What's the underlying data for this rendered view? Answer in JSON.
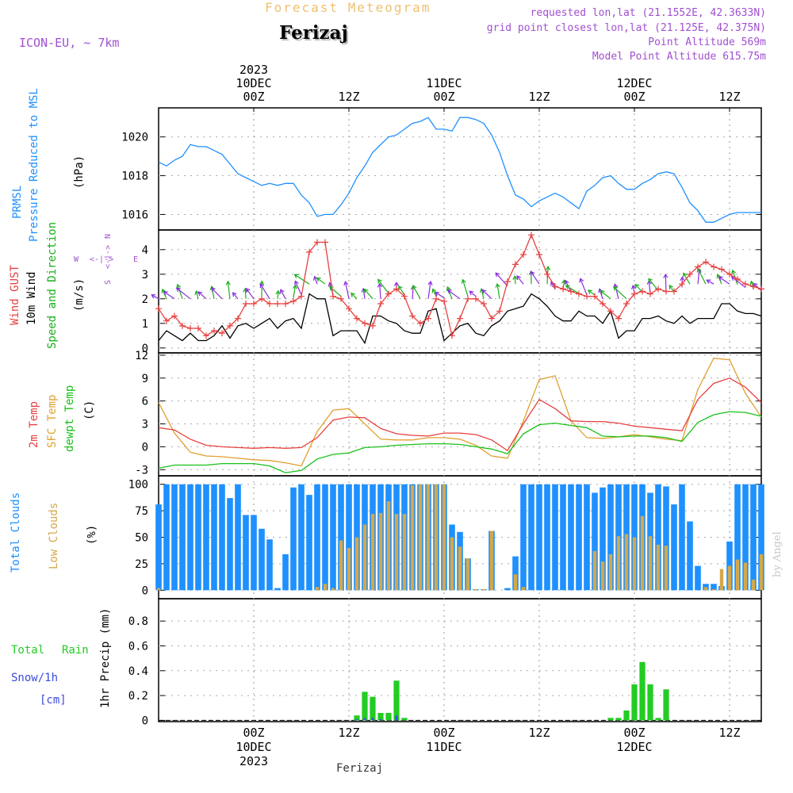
{
  "header": {
    "title": "Forecast Meteogram",
    "location": "Ferizaj",
    "model": "ICON-EU, ~ 7km",
    "requested": "requested lon,lat (21.1552E, 42.3633N)",
    "grid_point": "grid point closest lon,lat (21.125E, 42.375N)",
    "point_altitude": "Point Altitude 569m",
    "model_altitude": "Model Point Altitude 615.75m",
    "footer_location": "Ferizaj",
    "watermark": "by Angel"
  },
  "colors": {
    "prmsl": "#1e90ff",
    "gust": "#e84040",
    "wind": "#000000",
    "direction": "#18b018",
    "temp2m": "#e84040",
    "sfc": "#e0a030",
    "dewpt": "#18c018",
    "total_clouds": "#1e90ff",
    "low_clouds": "#d4a84a",
    "rain": "#22cc22",
    "snow": "#3a4ae0",
    "purple": "#a050d0",
    "title_orange": "#f0c070"
  },
  "time_axis": {
    "top": [
      {
        "hour": 12,
        "lines": [
          "2023",
          "10DEC",
          "00Z"
        ]
      },
      {
        "hour": 24,
        "lines": [
          "12Z"
        ]
      },
      {
        "hour": 36,
        "lines": [
          "11DEC",
          "00Z"
        ]
      },
      {
        "hour": 48,
        "lines": [
          "12Z"
        ]
      },
      {
        "hour": 60,
        "lines": [
          "12DEC",
          "00Z"
        ]
      },
      {
        "hour": 72,
        "lines": [
          "12Z"
        ]
      }
    ],
    "bottom": [
      {
        "hour": 12,
        "lines": [
          "00Z",
          "10DEC",
          "2023"
        ]
      },
      {
        "hour": 24,
        "lines": [
          "12Z"
        ]
      },
      {
        "hour": 36,
        "lines": [
          "00Z",
          "11DEC"
        ]
      },
      {
        "hour": 48,
        "lines": [
          "12Z"
        ]
      },
      {
        "hour": 60,
        "lines": [
          "00Z",
          "12DEC"
        ]
      },
      {
        "hour": 72,
        "lines": [
          "12Z"
        ]
      }
    ]
  },
  "panels": {
    "pressure": {
      "labels": [
        "PRMSL",
        "Pressure Reduced to MSL"
      ],
      "unit": "(hPa)"
    },
    "wind": {
      "labels": [
        "Wind GUST",
        "10m Wind",
        "Speed and Direction"
      ],
      "unit": "(m/s)",
      "compass": {
        "n": "N",
        "s": "S",
        "e": "E",
        "w": "W",
        "ns": "<-|->",
        "we": "<-|->"
      }
    },
    "temp": {
      "labels": [
        "2m Temp",
        "SFC Temp",
        "dewpt Temp"
      ],
      "unit": "(C)"
    },
    "clouds": {
      "labels": [
        "Total Clouds",
        "Low Clouds"
      ],
      "unit": "(%)"
    },
    "precip": {
      "labels": [
        "Total",
        "Rain",
        "Snow/1h",
        "[cm]"
      ],
      "unit": "1hr Precip (mm)"
    }
  },
  "chart_data": [
    {
      "type": "line",
      "id": "pressure",
      "ylabel": "hPa",
      "ylim": [
        1015.2,
        1021.5
      ],
      "yticks": [
        1016,
        1018,
        1020
      ],
      "x": [
        0,
        1,
        2,
        3,
        4,
        5,
        6,
        7,
        8,
        9,
        10,
        11,
        12,
        13,
        14,
        15,
        16,
        17,
        18,
        19,
        20,
        21,
        22,
        23,
        24,
        25,
        26,
        27,
        28,
        29,
        30,
        31,
        32,
        33,
        34,
        35,
        36,
        37,
        38,
        39,
        40,
        41,
        42,
        43,
        44,
        45,
        46,
        47,
        48,
        49,
        50,
        51,
        52,
        53,
        54,
        55,
        56,
        57,
        58,
        59,
        60,
        61,
        62,
        63,
        64,
        65,
        66,
        67,
        68,
        69,
        70,
        71,
        72,
        73,
        74,
        75,
        76
      ],
      "series": [
        {
          "name": "PRMSL",
          "values": [
            1018.7,
            1018.5,
            1018.8,
            1019.0,
            1019.6,
            1019.5,
            1019.5,
            1019.3,
            1019.1,
            1018.6,
            1018.1,
            1017.9,
            1017.7,
            1017.5,
            1017.6,
            1017.5,
            1017.6,
            1017.6,
            1017.0,
            1016.6,
            1015.9,
            1016.0,
            1016.0,
            1016.5,
            1017.1,
            1017.9,
            1018.5,
            1019.2,
            1019.6,
            1020.0,
            1020.1,
            1020.4,
            1020.7,
            1020.8,
            1021.0,
            1020.4,
            1020.4,
            1020.3,
            1021.0,
            1021.0,
            1020.9,
            1020.7,
            1020.1,
            1019.2,
            1018.0,
            1017.0,
            1016.8,
            1016.4,
            1016.7,
            1016.9,
            1017.1,
            1016.9,
            1016.6,
            1016.3,
            1017.2,
            1017.5,
            1017.9,
            1018.0,
            1017.6,
            1017.3,
            1017.3,
            1017.6,
            1017.8,
            1018.1,
            1018.2,
            1018.1,
            1017.4,
            1016.6,
            1016.2,
            1015.6,
            1015.6,
            1015.8,
            1016.0,
            1016.1,
            1016.1,
            1016.1,
            1016.1
          ]
        }
      ]
    },
    {
      "type": "line",
      "id": "wind",
      "ylabel": "m/s",
      "ylim": [
        -0.2,
        4.8
      ],
      "yticks": [
        0,
        1,
        2,
        3,
        4
      ],
      "x": [
        0,
        1,
        2,
        3,
        4,
        5,
        6,
        7,
        8,
        9,
        10,
        11,
        12,
        13,
        14,
        15,
        16,
        17,
        18,
        19,
        20,
        21,
        22,
        23,
        24,
        25,
        26,
        27,
        28,
        29,
        30,
        31,
        32,
        33,
        34,
        35,
        36,
        37,
        38,
        39,
        40,
        41,
        42,
        43,
        44,
        45,
        46,
        47,
        48,
        49,
        50,
        51,
        52,
        53,
        54,
        55,
        56,
        57,
        58,
        59,
        60,
        61,
        62,
        63,
        64,
        65,
        66,
        67,
        68,
        69,
        70,
        71,
        72,
        73,
        74,
        75,
        76
      ],
      "series": [
        {
          "name": "Wind GUST",
          "values": [
            1.6,
            1.1,
            1.3,
            0.9,
            0.8,
            0.8,
            0.5,
            0.7,
            0.6,
            0.9,
            1.2,
            1.8,
            1.8,
            2.0,
            1.8,
            1.8,
            1.8,
            1.9,
            2.1,
            3.9,
            4.3,
            4.3,
            2.1,
            2.0,
            1.6,
            1.2,
            1.0,
            0.9,
            1.8,
            2.2,
            2.4,
            2.1,
            1.3,
            1.0,
            1.2,
            2.0,
            1.9,
            0.5,
            1.2,
            2.0,
            2.0,
            1.8,
            1.2,
            1.5,
            2.7,
            3.4,
            3.8,
            4.6,
            3.8,
            3.0,
            2.5,
            2.4,
            2.3,
            2.2,
            2.1,
            2.1,
            1.8,
            1.5,
            1.2,
            1.8,
            2.2,
            2.3,
            2.2,
            2.4,
            2.3,
            2.3,
            2.6,
            3.0,
            3.3,
            3.5,
            3.3,
            3.2,
            3.0,
            2.8,
            2.6,
            2.5,
            2.4
          ]
        },
        {
          "name": "10m Wind",
          "values": [
            0.3,
            0.7,
            0.5,
            0.3,
            0.6,
            0.3,
            0.3,
            0.5,
            0.9,
            0.4,
            0.9,
            1.0,
            0.8,
            1.0,
            1.2,
            0.8,
            1.1,
            1.2,
            0.8,
            2.2,
            2.0,
            2.0,
            0.5,
            0.7,
            0.7,
            0.7,
            0.2,
            1.3,
            1.3,
            1.1,
            1.0,
            0.7,
            0.6,
            0.6,
            1.5,
            1.6,
            0.3,
            0.6,
            0.9,
            1.0,
            0.6,
            0.5,
            0.9,
            1.1,
            1.5,
            1.6,
            1.7,
            2.2,
            2.0,
            1.7,
            1.3,
            1.1,
            1.1,
            1.5,
            1.3,
            1.3,
            1.0,
            1.5,
            0.4,
            0.7,
            0.7,
            1.2,
            1.2,
            1.3,
            1.1,
            1.0,
            1.3,
            1.0,
            1.2,
            1.2,
            1.2,
            1.8,
            1.8,
            1.5,
            1.4,
            1.4,
            1.3
          ]
        }
      ]
    },
    {
      "type": "line",
      "id": "temperature",
      "ylabel": "C",
      "ylim": [
        -3.8,
        12.3
      ],
      "yticks": [
        -3,
        0,
        3,
        6,
        9,
        12
      ],
      "x": [
        0,
        2,
        4,
        6,
        8,
        10,
        12,
        14,
        16,
        18,
        20,
        22,
        24,
        26,
        28,
        30,
        32,
        34,
        36,
        38,
        40,
        42,
        44,
        46,
        48,
        50,
        52,
        54,
        56,
        58,
        60,
        62,
        64,
        66,
        68,
        70,
        72,
        74,
        76
      ],
      "series": [
        {
          "name": "2m Temp",
          "values": [
            2.5,
            2.2,
            1.0,
            0.2,
            0.0,
            -0.1,
            -0.2,
            -0.1,
            -0.2,
            -0.1,
            1.2,
            3.5,
            3.9,
            3.8,
            2.4,
            1.7,
            1.5,
            1.4,
            1.8,
            1.8,
            1.6,
            0.9,
            -0.5,
            3.0,
            6.2,
            5.0,
            3.4,
            3.3,
            3.3,
            3.1,
            2.7,
            2.5,
            2.3,
            2.1,
            6.2,
            8.3,
            9.0,
            7.8,
            5.8
          ]
        },
        {
          "name": "SFC Temp",
          "values": [
            5.8,
            1.8,
            -0.7,
            -1.2,
            -1.3,
            -1.5,
            -1.7,
            -1.8,
            -2.1,
            -2.5,
            2.0,
            4.8,
            5.0,
            3.0,
            1.0,
            0.9,
            0.9,
            1.2,
            1.2,
            1.0,
            0.2,
            -1.2,
            -1.5,
            3.4,
            8.8,
            9.3,
            3.4,
            1.2,
            1.1,
            1.3,
            1.6,
            1.3,
            1.0,
            0.8,
            7.5,
            11.6,
            11.4,
            7.0,
            3.9
          ]
        },
        {
          "name": "dewpt Temp",
          "values": [
            -2.8,
            -2.4,
            -2.4,
            -2.4,
            -2.2,
            -2.2,
            -2.2,
            -2.5,
            -3.4,
            -3.1,
            -1.6,
            -1.0,
            -0.8,
            -0.1,
            0.0,
            0.2,
            0.3,
            0.4,
            0.4,
            0.3,
            0.0,
            -0.3,
            -0.9,
            1.7,
            2.9,
            3.1,
            2.8,
            2.5,
            1.4,
            1.3,
            1.4,
            1.4,
            1.2,
            0.7,
            3.2,
            4.2,
            4.6,
            4.5,
            4.0
          ]
        }
      ]
    },
    {
      "type": "bar",
      "id": "clouds",
      "ylabel": "%",
      "ylim": [
        -8,
        108
      ],
      "yticks": [
        0,
        25,
        50,
        75,
        100
      ],
      "x": [
        0,
        1,
        2,
        3,
        4,
        5,
        6,
        7,
        8,
        9,
        10,
        11,
        12,
        13,
        14,
        15,
        16,
        17,
        18,
        19,
        20,
        21,
        22,
        23,
        24,
        25,
        26,
        27,
        28,
        29,
        30,
        31,
        32,
        33,
        34,
        35,
        36,
        37,
        38,
        39,
        40,
        41,
        42,
        43,
        44,
        45,
        46,
        47,
        48,
        49,
        50,
        51,
        52,
        53,
        54,
        55,
        56,
        57,
        58,
        59,
        60,
        61,
        62,
        63,
        64,
        65,
        66,
        67,
        68,
        69,
        70,
        71,
        72,
        73,
        74,
        75,
        76
      ],
      "series": [
        {
          "name": "Total Clouds",
          "values": [
            81,
            100,
            100,
            100,
            100,
            100,
            100,
            100,
            100,
            87,
            100,
            71,
            71,
            58,
            48,
            2,
            34,
            97,
            100,
            90,
            100,
            100,
            100,
            100,
            100,
            100,
            100,
            100,
            100,
            100,
            100,
            100,
            100,
            100,
            100,
            100,
            100,
            62,
            55,
            30,
            1,
            1,
            56,
            0,
            2,
            32,
            100,
            100,
            100,
            100,
            100,
            100,
            100,
            100,
            100,
            92,
            97,
            100,
            100,
            100,
            100,
            100,
            92,
            100,
            98,
            81,
            100,
            65,
            23,
            6,
            6,
            4,
            46,
            100,
            100,
            100,
            100
          ]
        },
        {
          "name": "Low Clouds",
          "values": [
            2,
            0,
            0,
            0,
            0,
            0,
            0,
            0,
            0,
            0,
            0,
            0,
            0,
            0,
            0,
            0,
            0,
            0,
            0,
            0,
            3,
            6,
            2,
            47,
            40,
            50,
            62,
            72,
            73,
            84,
            72,
            72,
            99,
            100,
            100,
            100,
            100,
            50,
            41,
            30,
            1,
            1,
            56,
            0,
            0,
            15,
            3,
            0,
            0,
            0,
            0,
            0,
            0,
            0,
            0,
            37,
            27,
            34,
            51,
            53,
            50,
            70,
            51,
            43,
            42,
            0,
            0,
            0,
            0,
            3,
            1,
            20,
            23,
            29,
            26,
            10,
            34
          ]
        }
      ]
    },
    {
      "type": "bar",
      "id": "precipitation",
      "ylabel": "mm",
      "ylim": [
        -0.01,
        0.98
      ],
      "yticks": [
        0,
        0.2,
        0.4,
        0.6,
        0.8
      ],
      "x": [
        25,
        26,
        27,
        28,
        29,
        30,
        31,
        32,
        57,
        58,
        59,
        60,
        61,
        62,
        63,
        64,
        65
      ],
      "series": [
        {
          "name": "Total Rain",
          "values": [
            0.04,
            0.23,
            0.19,
            0.06,
            0.06,
            0.32,
            0.02,
            0.0,
            0.02,
            0.02,
            0.08,
            0.29,
            0.47,
            0.29,
            0.02,
            0.25,
            0.0
          ]
        },
        {
          "name": "Snow/1h",
          "values": [
            0.01,
            0.02,
            0.02,
            0.01,
            0.0,
            0.04,
            0.0,
            0.0,
            0.0,
            0.0,
            0.0,
            0.0,
            0.0,
            0.0,
            0.0,
            0.0,
            0.0
          ]
        }
      ]
    }
  ]
}
